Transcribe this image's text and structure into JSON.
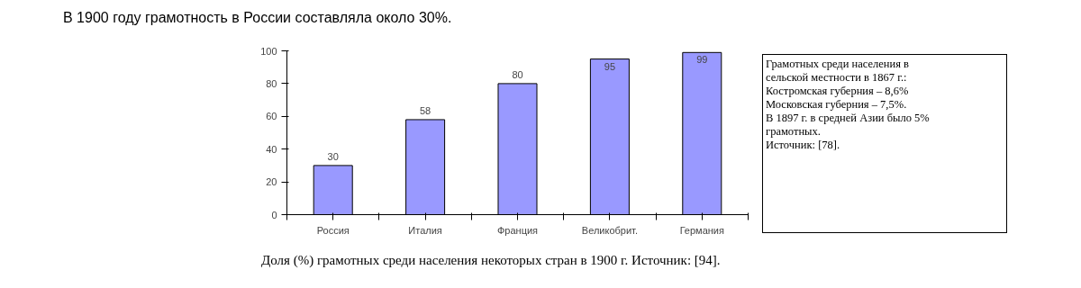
{
  "chart_data": {
    "type": "bar",
    "title": "Доля (%) грамотных среди населения некоторых стран в 1900 г. Источник:  [94].",
    "categories": [
      "Россия",
      "Италия",
      "Франция",
      "Великобрит.",
      "Германия"
    ],
    "values": [
      30,
      58,
      80,
      95,
      99
    ],
    "color": "#9999ff",
    "ylim": [
      0,
      100
    ],
    "yticks": [
      0,
      20,
      40,
      60,
      80,
      100
    ],
    "grid": false,
    "data_labels": true,
    "annotations": [
      "В 1900 году грамотность в России составляла около 30%.",
      "Грамотных среди населения в\nсельской местности в 1867 г.:\nКостромская губерния – 8,6%\nМосковская губерния – 7,5%.\nВ 1897 г. в средней Азии было 5%\nграмотных.\nИсточник: [78]."
    ]
  }
}
